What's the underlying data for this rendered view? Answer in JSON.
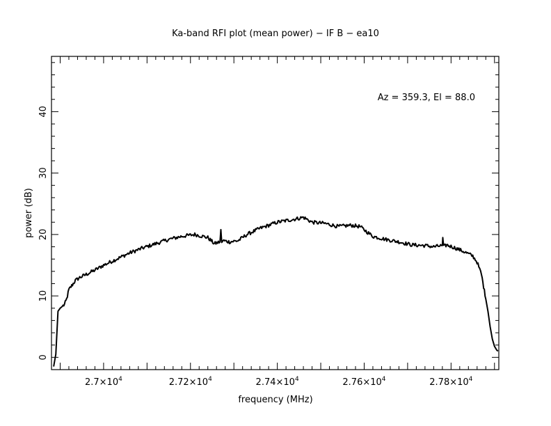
{
  "chart_data": {
    "type": "line",
    "title": "Ka-band RFI plot (mean power) − IF B − ea10",
    "xlabel": "frequency (MHz)",
    "ylabel": "power (dB)",
    "annotation": "Az = 359.3, El = 88.0",
    "xlim": [
      26880,
      27910
    ],
    "ylim": [
      -2,
      49
    ],
    "x_ticks": [
      {
        "value": 27000,
        "label_mant": "2.7×10",
        "label_exp": "4"
      },
      {
        "value": 27200,
        "label_mant": "2.72×10",
        "label_exp": "4"
      },
      {
        "value": 27400,
        "label_mant": "2.74×10",
        "label_exp": "4"
      },
      {
        "value": 27600,
        "label_mant": "2.76×10",
        "label_exp": "4"
      },
      {
        "value": 27800,
        "label_mant": "2.78×10",
        "label_exp": "4"
      }
    ],
    "y_ticks": [
      {
        "value": 0,
        "label": "0"
      },
      {
        "value": 10,
        "label": "10"
      },
      {
        "value": 20,
        "label": "20"
      },
      {
        "value": 30,
        "label": "30"
      },
      {
        "value": 40,
        "label": "40"
      }
    ],
    "line_color": "#000000",
    "series": [
      {
        "values_x": [
          26885,
          26890,
          26895,
          26900,
          26905,
          26910,
          26915,
          26920,
          26925,
          26930,
          26935,
          26945,
          26960,
          26980,
          27000,
          27030,
          27060,
          27090,
          27120,
          27150,
          27180,
          27210,
          27240,
          27255,
          27268,
          27270,
          27272,
          27275,
          27290,
          27310,
          27330,
          27360,
          27400,
          27440,
          27460,
          27480,
          27510,
          27540,
          27570,
          27590,
          27620,
          27650,
          27680,
          27710,
          27740,
          27760,
          27780,
          27781,
          27783,
          27790,
          27810,
          27830,
          27850,
          27860,
          27870,
          27875,
          27880,
          27885,
          27890,
          27895,
          27900,
          27905,
          27908
        ],
        "values_y": [
          -1.5,
          0.5,
          7.5,
          8.0,
          8.3,
          8.6,
          9.5,
          11.0,
          11.5,
          12.0,
          12.5,
          13.0,
          13.5,
          14.2,
          15.0,
          16.0,
          17.0,
          17.8,
          18.5,
          19.2,
          19.7,
          20.0,
          19.5,
          18.5,
          18.8,
          20.8,
          18.7,
          19.0,
          18.8,
          19.0,
          20.0,
          21.0,
          22.0,
          22.5,
          22.8,
          22.0,
          21.8,
          21.3,
          21.5,
          21.3,
          19.7,
          19.2,
          18.8,
          18.3,
          18.2,
          18.0,
          18.2,
          19.5,
          18.0,
          18.3,
          17.8,
          17.2,
          16.5,
          15.5,
          13.5,
          11.5,
          9.5,
          7.5,
          5.0,
          3.0,
          1.8,
          1.2,
          1.0
        ]
      }
    ]
  }
}
